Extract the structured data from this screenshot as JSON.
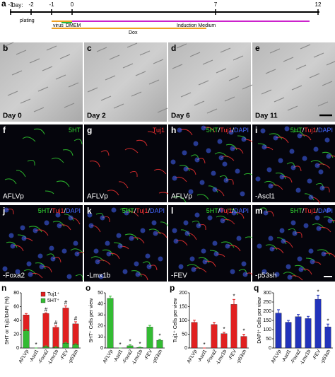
{
  "timeline": {
    "letter": "a",
    "day_label": "Day:",
    "days": [
      -3,
      -2,
      -1,
      0,
      7,
      12
    ],
    "plating": "plating",
    "virus": "virus",
    "dmem": "DMEM",
    "induction": "Induction Medium",
    "dox": "Dox"
  },
  "brightfield": [
    {
      "letter": "b",
      "label": "Day 0"
    },
    {
      "letter": "c",
      "label": "Day 2"
    },
    {
      "letter": "d",
      "label": "Day 6"
    },
    {
      "letter": "e",
      "label": "Day 11"
    }
  ],
  "fluorescence": [
    {
      "letter": "f",
      "channels": [
        "5HT"
      ],
      "condition": "AFLVp"
    },
    {
      "letter": "g",
      "channels": [
        "Tuj1"
      ],
      "condition": "AFLVp"
    },
    {
      "letter": "h",
      "channels": [
        "5HT",
        "Tuj1",
        "DAPI"
      ],
      "condition": "AFLVp"
    },
    {
      "letter": "i",
      "channels": [
        "5HT",
        "Tuj1",
        "DAPI"
      ],
      "condition": "-Ascl1"
    },
    {
      "letter": "j",
      "channels": [
        "5HT",
        "Tuj1",
        "DAPI"
      ],
      "condition": "-Foxa2"
    },
    {
      "letter": "k",
      "channels": [
        "5HT",
        "Tuj1",
        "DAPI"
      ],
      "condition": "-Lmx1b"
    },
    {
      "letter": "l",
      "channels": [
        "5HT",
        "Tuj1",
        "DAPI"
      ],
      "condition": "-FEV"
    },
    {
      "letter": "m",
      "channels": [
        "5HT",
        "Tuj1",
        "DAPI"
      ],
      "condition": "-p53sh"
    }
  ],
  "channel_separator": "/",
  "channel_colors": {
    "5HT": "#33dd33",
    "Tuj1": "#ff3333",
    "DAPI": "#4466ff"
  },
  "chart_data": [
    {
      "type": "bar",
      "letter": "n",
      "y_label": "5HT or Tuj1/DAPI (%)",
      "categories": [
        "AFLVp",
        "-Ascl1",
        "-Foxa2",
        "-Lmx1b",
        "-FEV",
        "-p53sh"
      ],
      "series": [
        {
          "name": "Tuj1⁺",
          "color": "#e02020",
          "values": [
            48,
            0,
            50,
            30,
            58,
            35
          ],
          "errors": [
            2,
            0,
            1,
            2,
            3,
            3
          ],
          "sig": [
            null,
            "*",
            "#",
            "#",
            "#",
            "#"
          ]
        },
        {
          "name": "5HT⁺",
          "color": "#33bb33",
          "values": [
            25,
            0,
            2,
            1,
            7,
            5
          ],
          "errors": [
            2,
            0,
            1,
            1,
            1,
            1
          ],
          "sig": [
            null,
            null,
            null,
            null,
            null,
            null
          ]
        }
      ],
      "ylim": [
        0,
        80
      ],
      "yticks": [
        0,
        20,
        40,
        60,
        80
      ]
    },
    {
      "type": "bar",
      "letter": "o",
      "y_label": "5HT⁺ Cells per view",
      "categories": [
        "AFLVp",
        "-Ascl1",
        "-Foxa2",
        "-Lmx1b",
        "-FEV",
        "-p53sh"
      ],
      "series": [
        {
          "name": null,
          "color": "#33bb33",
          "values": [
            45,
            0,
            2,
            0.5,
            19,
            7
          ],
          "errors": [
            2,
            0,
            1,
            0.3,
            1.5,
            1
          ],
          "sig": [
            null,
            "*",
            "*",
            "*",
            null,
            "*"
          ]
        }
      ],
      "ylim": [
        0,
        50
      ],
      "yticks": [
        0,
        10,
        20,
        30,
        40,
        50
      ]
    },
    {
      "type": "bar",
      "letter": "p",
      "y_label": "Tuj1⁺ Cells per view",
      "categories": [
        "AFLVp",
        "-Ascl1",
        "-Foxa2",
        "-Lmx1b",
        "-FEV",
        "-p53sh"
      ],
      "series": [
        {
          "name": null,
          "color": "#e02020",
          "values": [
            93,
            0,
            85,
            52,
            158,
            42
          ],
          "errors": [
            8,
            0,
            8,
            5,
            18,
            8
          ],
          "sig": [
            null,
            "*",
            null,
            "*",
            "*",
            "*"
          ]
        }
      ],
      "ylim": [
        0,
        200
      ],
      "yticks": [
        0,
        50,
        100,
        150,
        200
      ]
    },
    {
      "type": "bar",
      "letter": "q",
      "y_label": "DAPI⁺ Cells per view",
      "categories": [
        "AFLVp",
        "-Ascl1",
        "-Foxa2",
        "-Lmx1b",
        "-FEV",
        "-p53sh"
      ],
      "series": [
        {
          "name": null,
          "color": "#2233bb",
          "values": [
            190,
            140,
            170,
            160,
            265,
            115
          ],
          "errors": [
            18,
            10,
            12,
            12,
            22,
            15
          ],
          "sig": [
            null,
            null,
            null,
            null,
            "*",
            "*"
          ]
        }
      ],
      "ylim": [
        0,
        300
      ],
      "yticks": [
        0,
        50,
        100,
        150,
        200,
        250,
        300
      ]
    }
  ]
}
